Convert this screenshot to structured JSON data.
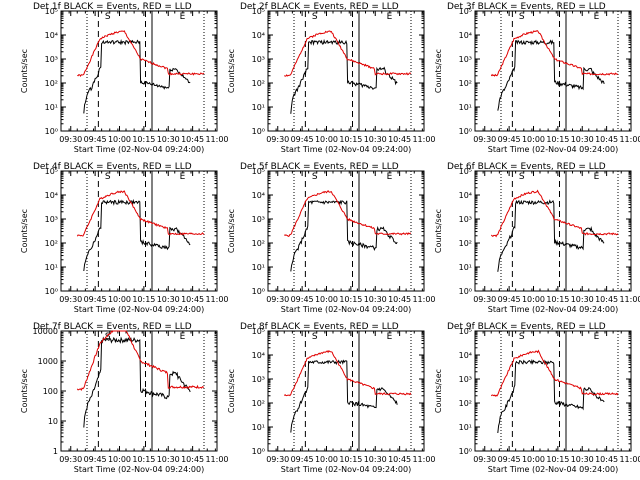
{
  "colors": {
    "events": "#000000",
    "lld": "#e00000",
    "axis": "#000000",
    "background": "#ffffff"
  },
  "chart_data": [
    {
      "id": "det1f",
      "type": "line",
      "title": "Det 1f BLACK = Events, RED = LLD",
      "xlabel": "Start Time (02-Nov-04 09:24:00)",
      "ylabel": "Counts/sec",
      "y_scale": "log",
      "ylim": [
        1,
        100000
      ],
      "yticks_style": "exponent",
      "yticks": [
        "10⁰",
        "10¹",
        "10²",
        "10³",
        "10⁴",
        "10⁵"
      ],
      "xlim": [
        "09:24",
        "11:00"
      ],
      "xticks": [
        "09:30",
        "09:45",
        "10:00",
        "10:15",
        "10:30",
        "10:45",
        "11:00"
      ],
      "markers": {
        "S": "09:51",
        "E": "10:37"
      }
    },
    {
      "id": "det2f",
      "type": "line",
      "title": "Det 2f BLACK = Events, RED = LLD",
      "xlabel": "Start Time (02-Nov-04 09:24:00)",
      "ylabel": "Counts/sec",
      "y_scale": "log",
      "ylim": [
        1,
        100000
      ],
      "yticks_style": "exponent",
      "yticks": [
        "10⁰",
        "10¹",
        "10²",
        "10³",
        "10⁴",
        "10⁵"
      ],
      "xlim": [
        "09:24",
        "11:00"
      ],
      "xticks": [
        "09:30",
        "09:45",
        "10:00",
        "10:15",
        "10:30",
        "10:45",
        "11:00"
      ],
      "markers": {
        "S": "09:51",
        "E": "10:37"
      }
    },
    {
      "id": "det3f",
      "type": "line",
      "title": "Det 3f BLACK = Events, RED = LLD",
      "xlabel": "Start Time (02-Nov-04 09:24:00)",
      "ylabel": "Counts/sec",
      "y_scale": "log",
      "ylim": [
        1,
        100000
      ],
      "yticks_style": "exponent",
      "yticks": [
        "10⁰",
        "10¹",
        "10²",
        "10³",
        "10⁴",
        "10⁵"
      ],
      "xlim": [
        "09:24",
        "11:00"
      ],
      "xticks": [
        "09:30",
        "09:45",
        "10:00",
        "10:15",
        "10:30",
        "10:45",
        "11:00"
      ],
      "markers": {
        "S": "09:51",
        "E": "10:37"
      }
    },
    {
      "id": "det4f",
      "type": "line",
      "title": "Det 4f BLACK = Events, RED = LLD",
      "xlabel": "Start Time (02-Nov-04 09:24:00)",
      "ylabel": "Counts/sec",
      "y_scale": "log",
      "ylim": [
        1,
        100000
      ],
      "yticks_style": "exponent",
      "yticks": [
        "10⁰",
        "10¹",
        "10²",
        "10³",
        "10⁴",
        "10⁵"
      ],
      "xlim": [
        "09:24",
        "11:00"
      ],
      "xticks": [
        "09:30",
        "09:45",
        "10:00",
        "10:15",
        "10:30",
        "10:45",
        "11:00"
      ],
      "markers": {
        "S": "09:51",
        "E": "10:37"
      }
    },
    {
      "id": "det5f",
      "type": "line",
      "title": "Det 5f BLACK = Events, RED = LLD",
      "xlabel": "Start Time (02-Nov-04 09:24:00)",
      "ylabel": "Counts/sec",
      "y_scale": "log",
      "ylim": [
        1,
        100000
      ],
      "yticks_style": "exponent",
      "yticks": [
        "10⁰",
        "10¹",
        "10²",
        "10³",
        "10⁴",
        "10⁵"
      ],
      "xlim": [
        "09:24",
        "11:00"
      ],
      "xticks": [
        "09:30",
        "09:45",
        "10:00",
        "10:15",
        "10:30",
        "10:45",
        "11:00"
      ],
      "markers": {
        "S": "09:51",
        "E": "10:37"
      }
    },
    {
      "id": "det6f",
      "type": "line",
      "title": "Det 6f BLACK = Events, RED = LLD",
      "xlabel": "Start Time (02-Nov-04 09:24:00)",
      "ylabel": "Counts/sec",
      "y_scale": "log",
      "ylim": [
        1,
        100000
      ],
      "yticks_style": "exponent",
      "yticks": [
        "10⁰",
        "10¹",
        "10²",
        "10³",
        "10⁴",
        "10⁵"
      ],
      "xlim": [
        "09:24",
        "11:00"
      ],
      "xticks": [
        "09:30",
        "09:45",
        "10:00",
        "10:15",
        "10:30",
        "10:45",
        "11:00"
      ],
      "markers": {
        "S": "09:51",
        "E": "10:37"
      }
    },
    {
      "id": "det7f",
      "type": "line",
      "title": "Det 7f BLACK = Events, RED = LLD",
      "xlabel": "Start Time (02-Nov-04 09:24:00)",
      "ylabel": "Counts/sec",
      "y_scale": "log",
      "ylim": [
        1,
        10000
      ],
      "yticks_style": "plain",
      "yticks": [
        "1",
        "10",
        "100",
        "1000",
        "10000"
      ],
      "xlim": [
        "09:24",
        "11:00"
      ],
      "xticks": [
        "09:30",
        "09:45",
        "10:00",
        "10:15",
        "10:30",
        "10:45",
        "11:00"
      ],
      "markers": {
        "S": "09:51",
        "E": "10:37"
      }
    },
    {
      "id": "det8f",
      "type": "line",
      "title": "Det 8f BLACK = Events, RED = LLD",
      "xlabel": "Start Time (02-Nov-04 09:24:00)",
      "ylabel": "Counts/sec",
      "y_scale": "log",
      "ylim": [
        1,
        100000
      ],
      "yticks_style": "exponent",
      "yticks": [
        "10⁰",
        "10¹",
        "10²",
        "10³",
        "10⁴",
        "10⁵"
      ],
      "xlim": [
        "09:24",
        "11:00"
      ],
      "xticks": [
        "09:30",
        "09:45",
        "10:00",
        "10:15",
        "10:30",
        "10:45",
        "11:00"
      ],
      "markers": {
        "S": "09:51",
        "E": "10:37"
      }
    },
    {
      "id": "det9f",
      "type": "line",
      "title": "Det 9f BLACK = Events, RED = LLD",
      "xlabel": "Start Time (02-Nov-04 09:24:00)",
      "ylabel": "Counts/sec",
      "y_scale": "log",
      "ylim": [
        1,
        100000
      ],
      "yticks_style": "exponent",
      "yticks": [
        "10⁰",
        "10¹",
        "10²",
        "10³",
        "10⁴",
        "10⁵"
      ],
      "xlim": [
        "09:24",
        "11:00"
      ],
      "xticks": [
        "09:30",
        "09:45",
        "10:00",
        "10:15",
        "10:30",
        "10:45",
        "11:00"
      ],
      "markers": {
        "S": "09:51",
        "E": "10:37"
      }
    }
  ]
}
